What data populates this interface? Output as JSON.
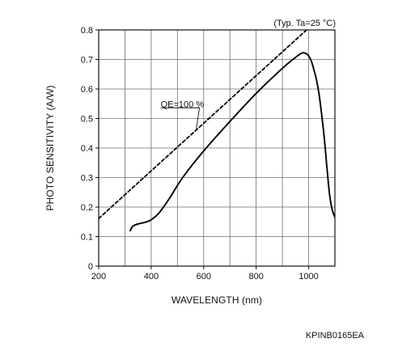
{
  "chart_data": {
    "type": "line",
    "annotation_top_right": "(Typ. Ta=25 °C)",
    "xlabel": "WAVELENGTH (nm)",
    "ylabel": "PHOTO SENSITIVITY (A/W)",
    "xlim": [
      200,
      1100
    ],
    "ylim": [
      0,
      0.8
    ],
    "x_ticks": [
      {
        "value": 200,
        "label": "200"
      },
      {
        "value": 400,
        "label": "400"
      },
      {
        "value": 600,
        "label": "600"
      },
      {
        "value": 800,
        "label": "800"
      },
      {
        "value": 1000,
        "label": "1000"
      }
    ],
    "y_ticks": [
      {
        "value": 0,
        "label": "0"
      },
      {
        "value": 0.1,
        "label": "0.1"
      },
      {
        "value": 0.2,
        "label": "0.2"
      },
      {
        "value": 0.3,
        "label": "0.3"
      },
      {
        "value": 0.4,
        "label": "0.4"
      },
      {
        "value": 0.5,
        "label": "0.5"
      },
      {
        "value": 0.6,
        "label": "0.6"
      },
      {
        "value": 0.7,
        "label": "0.7"
      },
      {
        "value": 0.8,
        "label": "0.8"
      }
    ],
    "grid": true,
    "grid_x_step": 100,
    "grid_y_step": 0.1,
    "series": [
      {
        "style": "solid",
        "color": "#000000",
        "x": [
          320,
          330,
          350,
          375,
          400,
          430,
          470,
          520,
          600,
          700,
          800,
          900,
          950,
          975,
          990,
          1000,
          1010,
          1020,
          1030,
          1040,
          1050,
          1060,
          1070,
          1080,
          1090,
          1100
        ],
        "y": [
          0.12,
          0.135,
          0.143,
          0.148,
          0.157,
          0.18,
          0.23,
          0.3,
          0.39,
          0.49,
          0.585,
          0.67,
          0.707,
          0.722,
          0.72,
          0.712,
          0.695,
          0.665,
          0.63,
          0.58,
          0.51,
          0.43,
          0.33,
          0.24,
          0.19,
          0.165
        ]
      },
      {
        "style": "dashed",
        "color": "#000000",
        "x": [
          200,
          1100
        ],
        "y": [
          0.16129,
          0.88709
        ]
      }
    ],
    "annotations": [
      {
        "text": "QE=100 %",
        "x": 430,
        "y": 0.55,
        "arrow_to": {
          "x": 572,
          "y": 0.465
        }
      }
    ]
  },
  "footer_code": "KPINB0165EA"
}
